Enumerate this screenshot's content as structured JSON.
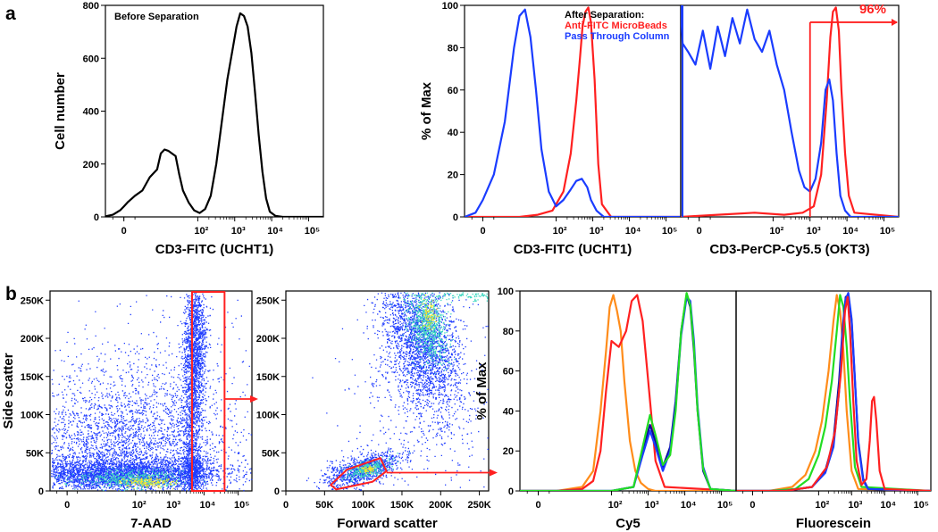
{
  "panel_labels": {
    "a": "a",
    "b": "b"
  },
  "colors": {
    "black": "#000000",
    "blue": "#1a3cff",
    "red": "#ff2020",
    "green": "#22dd22",
    "orange": "#ff8c1a",
    "navy": "#0a0a9a",
    "density_low": "#1f3cff",
    "density_mid": "#3ad6c0",
    "density_high": "#f2e62a"
  },
  "chart_data": [
    {
      "id": "a1",
      "type": "line",
      "annotation": "Before Separation",
      "xlabel": "CD3-FITC (UCHT1)",
      "ylabel": "Cell number",
      "xticks": [
        "0",
        "10²",
        "10³",
        "10⁴",
        "10⁵"
      ],
      "yticks": [
        "0",
        "200",
        "400",
        "600",
        "800"
      ],
      "ylim": [
        0,
        800
      ],
      "xlim": [
        -0.5,
        5.4
      ],
      "series": [
        {
          "name": "Before Separation",
          "color": "#000000",
          "x": [
            -0.5,
            -0.3,
            -0.1,
            0.0,
            0.1,
            0.3,
            0.5,
            0.7,
            0.9,
            1.0,
            1.1,
            1.2,
            1.3,
            1.4,
            1.5,
            1.6,
            1.75,
            1.9,
            2.05,
            2.2,
            2.35,
            2.5,
            2.65,
            2.8,
            2.95,
            3.05,
            3.15,
            3.25,
            3.35,
            3.45,
            3.55,
            3.65,
            3.75,
            3.85,
            3.95,
            4.1,
            4.3,
            5.4
          ],
          "y": [
            2,
            8,
            25,
            40,
            55,
            80,
            100,
            150,
            180,
            240,
            255,
            250,
            240,
            230,
            160,
            100,
            55,
            25,
            15,
            30,
            80,
            200,
            360,
            520,
            640,
            720,
            770,
            760,
            720,
            620,
            470,
            310,
            170,
            70,
            20,
            4,
            0,
            0
          ]
        }
      ]
    },
    {
      "id": "a2",
      "type": "line",
      "annotation_title": "After Separation:",
      "xlabel": "CD3-FITC (UCHT1)",
      "ylabel": "% of Max",
      "xticks": [
        "0",
        "10²",
        "10³",
        "10⁴",
        "10⁵"
      ],
      "yticks": [
        "0",
        "20",
        "40",
        "60",
        "80",
        "100"
      ],
      "ylim": [
        0,
        100
      ],
      "xlim": [
        -0.5,
        5.4
      ],
      "series": [
        {
          "name": "Anti-FITC MicroBeads",
          "color": "#ff2020",
          "x": [
            -0.5,
            1.0,
            1.5,
            1.9,
            2.2,
            2.4,
            2.55,
            2.65,
            2.72,
            2.8,
            2.88,
            2.95,
            3.05,
            3.15,
            3.25,
            3.5,
            5.4
          ],
          "y": [
            0,
            0,
            1,
            3,
            12,
            30,
            55,
            75,
            90,
            97,
            99,
            92,
            65,
            25,
            6,
            0,
            0
          ]
        },
        {
          "name": "Pass Through Column",
          "color": "#1a3cff",
          "x": [
            -0.5,
            -0.2,
            0.0,
            0.3,
            0.6,
            0.85,
            1.0,
            1.15,
            1.3,
            1.45,
            1.6,
            1.8,
            2.0,
            2.2,
            2.4,
            2.55,
            2.7,
            2.85,
            2.95,
            3.1,
            3.3,
            5.4
          ],
          "y": [
            0,
            2,
            8,
            20,
            45,
            80,
            95,
            98,
            85,
            60,
            32,
            12,
            5,
            8,
            13,
            17,
            18,
            14,
            8,
            3,
            0,
            0
          ]
        }
      ]
    },
    {
      "id": "a3",
      "type": "line",
      "xlabel": "CD3-PerCP-Cy5.5 (OKT3)",
      "xticks": [
        "0",
        "10²",
        "10³",
        "10⁴",
        "10⁵"
      ],
      "ylim": [
        0,
        100
      ],
      "xlim": [
        -0.5,
        5.4
      ],
      "gate_label": "96%",
      "gate_range": [
        3.0,
        5.4
      ],
      "gate_level": 92,
      "series": [
        {
          "name": "Anti-FITC MicroBeads",
          "color": "#ff2020",
          "x": [
            -0.5,
            0.5,
            1.5,
            2.3,
            2.8,
            3.1,
            3.3,
            3.45,
            3.55,
            3.62,
            3.7,
            3.78,
            3.85,
            3.95,
            4.05,
            4.2,
            5.4
          ],
          "y": [
            0,
            1,
            2,
            1,
            2,
            5,
            20,
            55,
            85,
            97,
            99,
            88,
            60,
            30,
            10,
            2,
            0
          ]
        },
        {
          "name": "Pass Through Column",
          "color": "#1a3cff",
          "x": [
            -0.5,
            -0.45,
            -0.3,
            -0.1,
            0.1,
            0.3,
            0.5,
            0.7,
            0.9,
            1.1,
            1.3,
            1.5,
            1.7,
            1.9,
            2.1,
            2.3,
            2.5,
            2.7,
            2.85,
            3.0,
            3.15,
            3.3,
            3.42,
            3.52,
            3.62,
            3.72,
            3.82,
            3.95,
            4.1,
            5.4
          ],
          "y": [
            100,
            82,
            78,
            72,
            88,
            70,
            90,
            76,
            94,
            82,
            98,
            84,
            78,
            88,
            72,
            60,
            40,
            22,
            14,
            12,
            18,
            35,
            60,
            65,
            55,
            30,
            10,
            3,
            0,
            0
          ]
        }
      ]
    },
    {
      "id": "b1",
      "type": "scatter",
      "xlabel": "7-AAD",
      "ylabel": "Side scatter",
      "xticks": [
        "0",
        "10²",
        "10³",
        "10⁴",
        "10⁵"
      ],
      "yticks": [
        "0",
        "50K",
        "100K",
        "150K",
        "200K",
        "250K"
      ],
      "ylim": [
        0,
        262000
      ],
      "xlim": [
        -0.5,
        5.4
      ],
      "gate": {
        "x": [
          3.65,
          4.6
        ],
        "y": [
          0,
          262000
        ]
      }
    },
    {
      "id": "b2",
      "type": "scatter",
      "xlabel": "Forward scatter",
      "xticks": [
        "0",
        "50K",
        "100K",
        "150K",
        "200K",
        "250K"
      ],
      "yticks": [
        "0",
        "50K",
        "100K",
        "150K",
        "200K",
        "250K"
      ],
      "ylim": [
        0,
        262000
      ],
      "xlim": [
        0,
        262000
      ],
      "gate": {
        "x": [
          58000,
          79000,
          122000,
          130000,
          112000,
          65000
        ],
        "y": [
          8000,
          28000,
          43000,
          26000,
          12000,
          2000
        ]
      }
    },
    {
      "id": "b3",
      "type": "line",
      "xlabel": "Cy5",
      "ylabel": "% of Max",
      "xticks": [
        "0",
        "10²",
        "10³",
        "10⁴",
        "10⁵"
      ],
      "yticks": [
        "0",
        "20",
        "40",
        "60",
        "80",
        "100"
      ],
      "ylim": [
        0,
        100
      ],
      "xlim": [
        -0.5,
        5.4
      ],
      "series": [
        {
          "name": "orange",
          "color": "#ff8c1a",
          "x": [
            -0.5,
            0.5,
            1.2,
            1.5,
            1.7,
            1.85,
            1.95,
            2.05,
            2.15,
            2.25,
            2.35,
            2.5,
            2.65,
            2.8,
            3.0,
            3.2,
            5.4
          ],
          "y": [
            0,
            0,
            2,
            10,
            40,
            70,
            92,
            98,
            90,
            80,
            55,
            25,
            10,
            4,
            1,
            0,
            0
          ]
        },
        {
          "name": "red",
          "color": "#ff2020",
          "x": [
            -0.5,
            0.5,
            1.2,
            1.5,
            1.7,
            1.85,
            2.0,
            2.2,
            2.4,
            2.55,
            2.7,
            2.85,
            3.0,
            3.2,
            3.45,
            5.4
          ],
          "y": [
            0,
            0,
            1,
            5,
            20,
            50,
            75,
            72,
            80,
            95,
            98,
            85,
            55,
            15,
            2,
            0
          ]
        },
        {
          "name": "navy",
          "color": "#0a0a9a",
          "x": [
            -0.5,
            2.0,
            2.6,
            2.85,
            3.05,
            3.2,
            3.4,
            3.6,
            3.75,
            3.9,
            4.05,
            4.15,
            4.25,
            4.35,
            4.5,
            4.7,
            5.4
          ],
          "y": [
            0,
            0,
            2,
            20,
            33,
            25,
            12,
            22,
            45,
            80,
            98,
            92,
            70,
            40,
            10,
            1,
            0
          ]
        },
        {
          "name": "blue",
          "color": "#1a3cff",
          "x": [
            -0.5,
            2.0,
            2.6,
            2.85,
            3.05,
            3.2,
            3.4,
            3.6,
            3.75,
            3.9,
            4.05,
            4.15,
            4.25,
            4.35,
            4.5,
            4.7,
            5.4
          ],
          "y": [
            0,
            0,
            2,
            18,
            30,
            22,
            10,
            20,
            42,
            78,
            97,
            95,
            75,
            42,
            12,
            1,
            0
          ]
        },
        {
          "name": "green",
          "color": "#22dd22",
          "x": [
            -0.5,
            2.0,
            2.6,
            2.85,
            3.05,
            3.2,
            3.4,
            3.6,
            3.75,
            3.9,
            4.05,
            4.15,
            4.25,
            4.35,
            4.5,
            4.7,
            5.4
          ],
          "y": [
            0,
            0,
            2,
            22,
            38,
            28,
            13,
            18,
            40,
            80,
            99,
            93,
            72,
            40,
            11,
            1,
            0
          ]
        }
      ]
    },
    {
      "id": "b4",
      "type": "line",
      "xlabel": "Fluorescein",
      "xticks": [
        "0",
        "10²",
        "10³",
        "10⁴",
        "10⁵"
      ],
      "ylim": [
        0,
        100
      ],
      "xlim": [
        -0.5,
        5.4
      ],
      "series": [
        {
          "name": "orange",
          "color": "#ff8c1a",
          "x": [
            -0.5,
            0.5,
            1.2,
            1.6,
            1.9,
            2.1,
            2.3,
            2.45,
            2.55,
            2.65,
            2.75,
            2.85,
            3.0,
            3.2,
            5.4
          ],
          "y": [
            0,
            0,
            2,
            8,
            20,
            35,
            60,
            85,
            98,
            90,
            70,
            40,
            10,
            1,
            0
          ]
        },
        {
          "name": "green",
          "color": "#22dd22",
          "x": [
            -0.5,
            0.5,
            1.3,
            1.7,
            2.0,
            2.2,
            2.4,
            2.55,
            2.65,
            2.75,
            2.85,
            2.95,
            3.1,
            3.3,
            5.4
          ],
          "y": [
            0,
            0,
            1,
            6,
            18,
            32,
            55,
            80,
            98,
            92,
            72,
            45,
            12,
            2,
            0
          ]
        },
        {
          "name": "navy",
          "color": "#0a0a9a",
          "x": [
            -0.5,
            1.0,
            1.8,
            2.2,
            2.45,
            2.62,
            2.72,
            2.82,
            2.9,
            3.0,
            3.1,
            3.2,
            3.35,
            3.5,
            5.4
          ],
          "y": [
            0,
            0,
            2,
            10,
            25,
            55,
            80,
            97,
            98,
            85,
            55,
            25,
            6,
            1,
            0
          ]
        },
        {
          "name": "blue",
          "color": "#1a3cff",
          "x": [
            -0.5,
            1.0,
            1.8,
            2.2,
            2.45,
            2.62,
            2.72,
            2.82,
            2.9,
            3.0,
            3.1,
            3.2,
            3.35,
            3.5,
            5.4
          ],
          "y": [
            0,
            0,
            2,
            9,
            22,
            50,
            78,
            96,
            99,
            86,
            56,
            24,
            5,
            1,
            0
          ]
        },
        {
          "name": "red",
          "color": "#ff2020",
          "x": [
            -0.5,
            1.0,
            1.8,
            2.25,
            2.5,
            2.68,
            2.8,
            2.88,
            2.95,
            3.05,
            3.15,
            3.3,
            3.45,
            3.55,
            3.62,
            3.68,
            3.75,
            3.85,
            4.0,
            5.4
          ],
          "y": [
            0,
            0,
            2,
            12,
            30,
            60,
            90,
            97,
            80,
            45,
            15,
            3,
            6,
            25,
            45,
            47,
            35,
            10,
            1,
            0
          ]
        }
      ]
    }
  ],
  "annotations": {
    "after_items": [
      {
        "label": "Anti-FITC MicroBeads",
        "color": "#ff2020"
      },
      {
        "label": "Pass Through Column",
        "color": "#1a3cff"
      }
    ]
  }
}
